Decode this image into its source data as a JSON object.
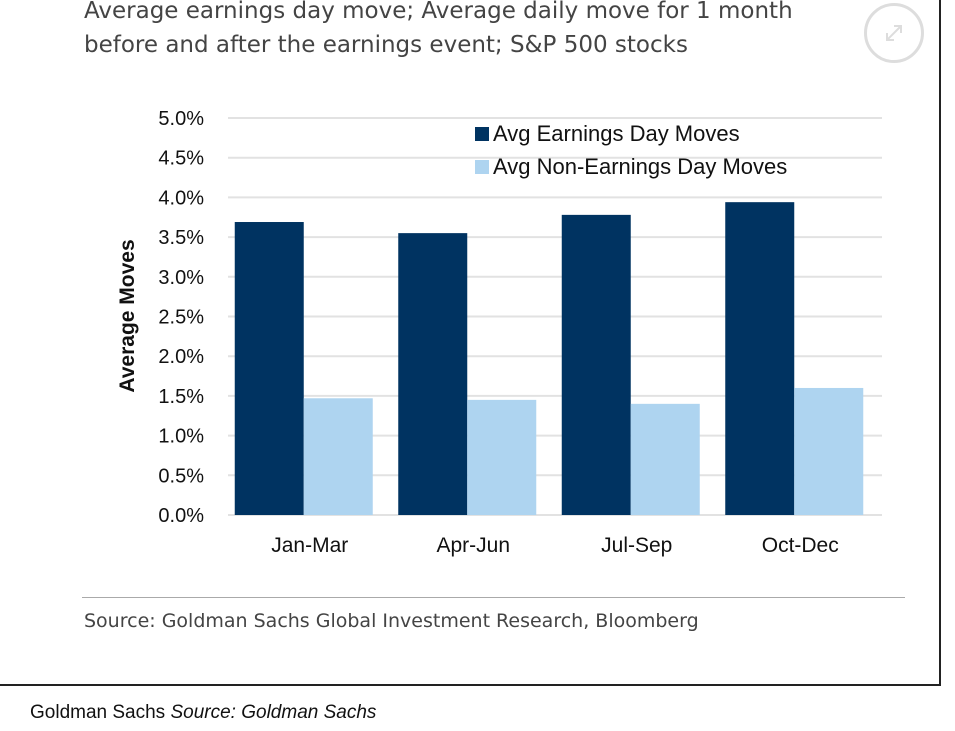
{
  "chart_data": {
    "type": "bar",
    "title": "Average earnings day move; Average daily move for 1 month before and after the earnings event; S&P 500 stocks",
    "ylabel": "Average Moves",
    "xlabel": "",
    "ylim": [
      0,
      5
    ],
    "yticks": [
      "0.0%",
      "0.5%",
      "1.0%",
      "1.5%",
      "2.0%",
      "2.5%",
      "3.0%",
      "3.5%",
      "4.0%",
      "4.5%",
      "5.0%"
    ],
    "categories": [
      "Jan-Mar",
      "Apr-Jun",
      "Jul-Sep",
      "Oct-Dec"
    ],
    "series": [
      {
        "name": "Avg Earnings Day Moves",
        "values": [
          3.69,
          3.55,
          3.78,
          3.94
        ],
        "color": "#003361"
      },
      {
        "name": "Avg Non-Earnings Day Moves",
        "values": [
          1.47,
          1.45,
          1.4,
          1.6
        ],
        "color": "#aed4f0"
      }
    ],
    "grid": true,
    "legend": "top-right",
    "source": "Source: Goldman Sachs Global Investment Research, Bloomberg"
  },
  "caption": {
    "credit": "Goldman Sachs",
    "source": "Source: Goldman Sachs"
  },
  "icons": {
    "expand": "expand-icon"
  }
}
